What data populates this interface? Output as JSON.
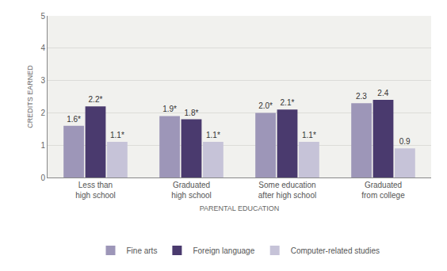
{
  "chart_data": {
    "type": "bar",
    "x_label": "PARENTAL EDUCATION",
    "y_label": "CREDITS EARNED",
    "categories": [
      "Less than high school",
      "Graduated high school",
      "Some education after high school",
      "Graduated from college"
    ],
    "series": [
      {
        "name": "Fine arts",
        "color": "#9d96b8",
        "values": [
          1.6,
          1.9,
          2.0,
          2.3
        ],
        "value_labels": [
          "1.6*",
          "1.9*",
          "2.0*",
          "2.3"
        ]
      },
      {
        "name": "Foreign language",
        "color": "#4a3a6e",
        "values": [
          2.2,
          1.8,
          2.1,
          2.4
        ],
        "value_labels": [
          "2.2*",
          "1.8*",
          "2.1*",
          "2.4"
        ]
      },
      {
        "name": "Computer-related studies",
        "color": "#c6c3d8",
        "values": [
          1.1,
          1.1,
          1.1,
          0.9
        ],
        "value_labels": [
          "1.1*",
          "1.1*",
          "1.1*",
          "0.9"
        ]
      }
    ],
    "ylim": [
      0,
      5
    ],
    "yticks": [
      0,
      1,
      2,
      3,
      4,
      5
    ],
    "grid": true,
    "legend": "bottom",
    "data_labels": true
  }
}
